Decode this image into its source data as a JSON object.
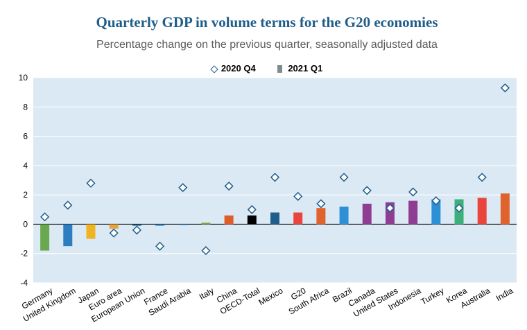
{
  "chart_data": {
    "type": "bar",
    "title": "Quarterly GDP in volume terms for the G20 economies",
    "subtitle": "Percentage change on the previous quarter, seasonally adjusted data",
    "ylim": [
      -4,
      10
    ],
    "yticks": [
      -4,
      -2,
      0,
      2,
      4,
      6,
      8,
      10
    ],
    "legend": {
      "q4_label": "2020 Q4",
      "q1_label": "2021 Q1"
    },
    "categories": [
      "Germany",
      "United Kingdom",
      "Japan",
      "Euro area",
      "European Union",
      "France",
      "Saudi Arabia",
      "Italy",
      "China",
      "OECD-Total",
      "Mexico",
      "G20",
      "South Africa",
      "Brazil",
      "Canada",
      "United States",
      "Indonesia",
      "Turkey",
      "Korea",
      "Australia",
      "India"
    ],
    "series": [
      {
        "name": "2021 Q1",
        "type": "bar",
        "values": [
          -1.8,
          -1.5,
          -1.0,
          -0.3,
          -0.1,
          -0.1,
          0.0,
          0.1,
          0.6,
          0.6,
          0.8,
          0.8,
          1.1,
          1.2,
          1.4,
          1.5,
          1.6,
          1.7,
          1.7,
          1.8,
          2.1
        ],
        "colors": [
          "#6aa84f",
          "#2d7ec1",
          "#f0b323",
          "#e8a33d",
          "#1f5d8a",
          "#2d7ec1",
          "#2d7ec1",
          "#7fa23b",
          "#e05d2a",
          "#000000",
          "#1f5d8a",
          "#e8453c",
          "#e0622c",
          "#2d8fd6",
          "#8e3d93",
          "#8e3d93",
          "#8e3d93",
          "#2d8fd6",
          "#3bb07c",
          "#e8453c",
          "#e0622c"
        ]
      },
      {
        "name": "2020 Q4",
        "type": "marker",
        "values": [
          0.5,
          1.3,
          2.8,
          -0.6,
          -0.4,
          -1.5,
          2.5,
          -1.8,
          2.6,
          1.0,
          3.2,
          1.9,
          1.4,
          3.2,
          2.3,
          1.1,
          2.2,
          1.6,
          1.1,
          3.2,
          9.3
        ]
      }
    ]
  }
}
